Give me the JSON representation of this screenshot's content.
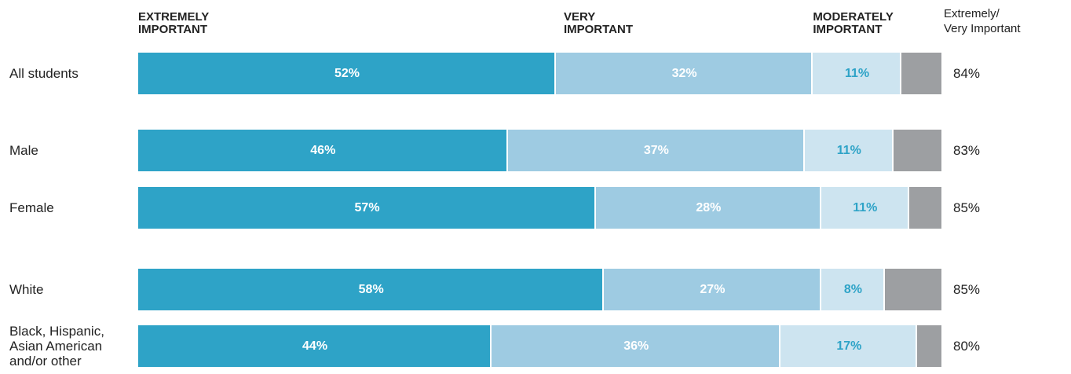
{
  "chart_data": {
    "type": "stacked-bar",
    "categories": [
      "All students",
      "Male",
      "Female",
      "White",
      "Black, Hispanic, Asian American and/or other"
    ],
    "xlim": [
      0,
      100
    ],
    "series": [
      {
        "name": "EXTREMELY IMPORTANT",
        "color": "#2ea3c7",
        "label_color": "#ffffff",
        "values": [
          52,
          46,
          57,
          58,
          44
        ],
        "value_labels": [
          "52%",
          "46%",
          "57%",
          "58%",
          "44%"
        ]
      },
      {
        "name": "VERY IMPORTANT",
        "color": "#9ecbe2",
        "label_color": "#ffffff",
        "values": [
          32,
          37,
          28,
          27,
          36
        ],
        "value_labels": [
          "32%",
          "37%",
          "28%",
          "27%",
          "36%"
        ]
      },
      {
        "name": "MODERATELY IMPORTANT",
        "color": "#cde4f0",
        "label_color": "#2ea3c7",
        "values": [
          11,
          11,
          11,
          8,
          17
        ],
        "value_labels": [
          "11%",
          "11%",
          "11%",
          "8%",
          "17%"
        ]
      },
      {
        "color": "#9d9fa2",
        "values": [
          5,
          6,
          4,
          7,
          3
        ]
      }
    ],
    "totals": {
      "title": "Extremely/\nVery Important",
      "values": [
        84,
        83,
        85,
        85,
        80
      ],
      "value_labels": [
        "84%",
        "83%",
        "85%",
        "85%",
        "80%"
      ]
    }
  }
}
